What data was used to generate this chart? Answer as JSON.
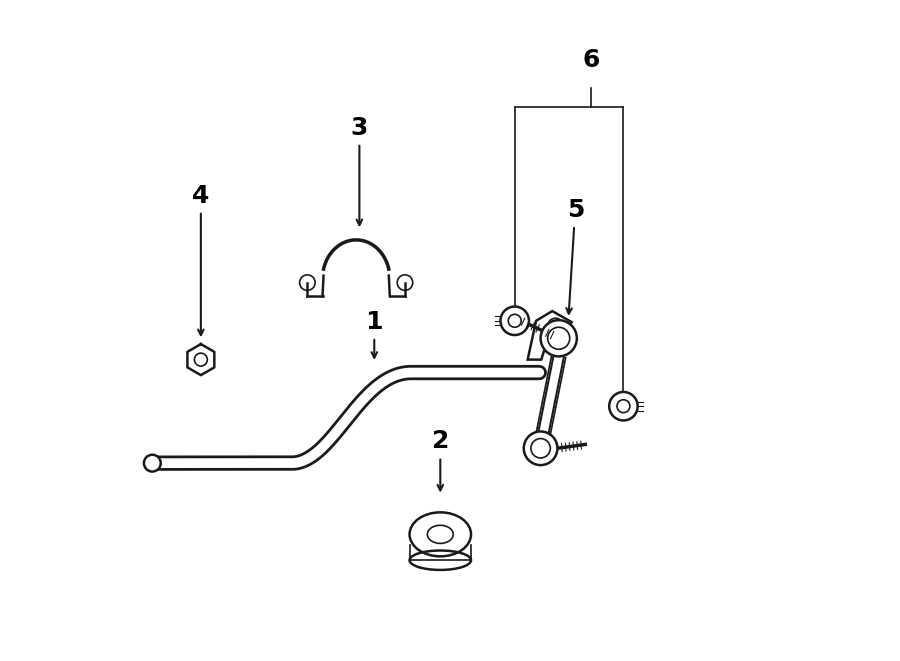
{
  "background_color": "#ffffff",
  "line_color": "#1a1a1a",
  "text_color": "#000000",
  "fig_width": 9.0,
  "fig_height": 6.61,
  "dpi": 100,
  "fontsize_labels": 18
}
